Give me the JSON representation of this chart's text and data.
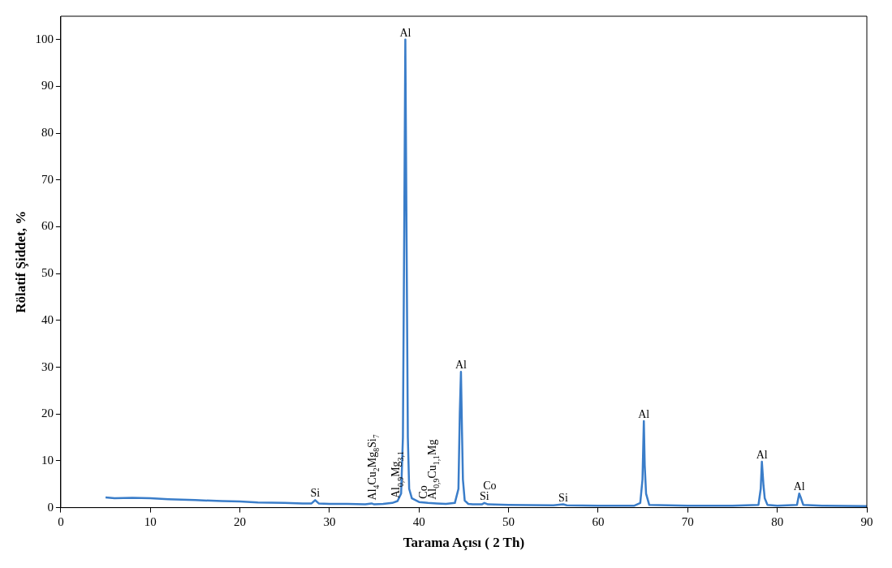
{
  "chart_data": {
    "type": "line",
    "xlabel": "Tarama Açısı ( 2 Th)",
    "ylabel": "Rölatif Şiddet, %",
    "xlim": [
      0,
      90
    ],
    "xticks": [
      0,
      10,
      20,
      30,
      40,
      50,
      60,
      70,
      80,
      90
    ],
    "ylim": [
      0,
      105
    ],
    "yticks": [
      0,
      10,
      20,
      30,
      40,
      50,
      60,
      70,
      80,
      90,
      100
    ],
    "grid": false,
    "legend": false,
    "marker": "none",
    "line_style": "solid",
    "series": [
      {
        "color": "#3a7dc9",
        "x": [
          5,
          6,
          8,
          10,
          12,
          15,
          18,
          20,
          22,
          25,
          27,
          28,
          28.4,
          28.8,
          30,
          32,
          34,
          34.7,
          35,
          36,
          37,
          37.6,
          38.0,
          38.2,
          38.35,
          38.47,
          38.6,
          38.75,
          38.9,
          39.2,
          40,
          41,
          42,
          43,
          44,
          44.4,
          44.55,
          44.68,
          44.8,
          44.9,
          45.1,
          45.5,
          46,
          47,
          47.3,
          47.7,
          50,
          55,
          56.1,
          56.5,
          60,
          64,
          64.7,
          64.95,
          65.1,
          65.2,
          65.35,
          65.7,
          70,
          75,
          77.9,
          78.15,
          78.28,
          78.45,
          78.6,
          78.9,
          80,
          82.2,
          82.45,
          82.65,
          82.9,
          85,
          90
        ],
        "values": [
          2.2,
          2.0,
          2.1,
          2.0,
          1.8,
          1.6,
          1.4,
          1.3,
          1.1,
          1.0,
          0.9,
          0.9,
          1.6,
          0.9,
          0.8,
          0.8,
          0.7,
          0.9,
          0.7,
          0.8,
          1.0,
          1.4,
          3,
          15,
          60,
          100,
          60,
          15,
          4,
          2,
          1.2,
          1.0,
          0.9,
          0.8,
          1.0,
          4,
          20,
          29,
          16,
          6,
          1.5,
          0.8,
          0.7,
          0.7,
          1.0,
          0.7,
          0.6,
          0.5,
          0.7,
          0.5,
          0.4,
          0.4,
          1.0,
          6,
          18.5,
          9,
          3,
          0.6,
          0.4,
          0.4,
          0.6,
          4,
          9.8,
          5,
          2,
          0.6,
          0.4,
          0.6,
          3.0,
          2,
          0.6,
          0.4,
          0.3
        ]
      }
    ],
    "annotations": [
      {
        "text": "Si",
        "x": 28.4,
        "y": 1.6
      },
      {
        "text": "Al$_{4}$Cu$_{2}$Mg$_{8}$Si$_{7}$",
        "x": 34.7,
        "y": 0.9
      },
      {
        "text": "Al$_{0,9}$Mg$_{3,1}$",
        "x": 37.4,
        "y": 1.3
      },
      {
        "text": "Al",
        "x": 38.47,
        "y": 100
      },
      {
        "text": "Co",
        "x": 40.4,
        "y": 1.2
      },
      {
        "text": "Al$_{0,9}$Cu$_{1,1}$Mg",
        "x": 41.4,
        "y": 1.0
      },
      {
        "text": "Al",
        "x": 44.68,
        "y": 29
      },
      {
        "text": "Si",
        "x": 47.3,
        "y": 1.0
      },
      {
        "text": "Co",
        "x": 47.9,
        "y": 0.7
      },
      {
        "text": "Si",
        "x": 56.1,
        "y": 0.7
      },
      {
        "text": "Al",
        "x": 65.1,
        "y": 18.5
      },
      {
        "text": "Al",
        "x": 78.28,
        "y": 9.8
      },
      {
        "text": "Al",
        "x": 82.45,
        "y": 3.0
      }
    ]
  }
}
